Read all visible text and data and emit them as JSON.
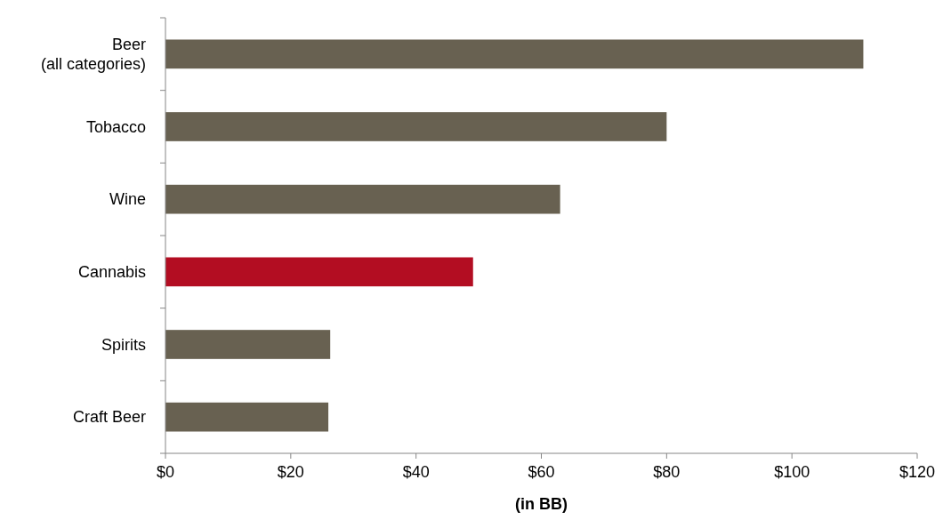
{
  "chart_data": {
    "type": "bar",
    "orientation": "horizontal",
    "xlabel": "(in BB)",
    "categories": [
      "Beer\n(all categories)",
      "Tobacco",
      "Wine",
      "Cannabis",
      "Spirits",
      "Craft Beer"
    ],
    "values": [
      111.4,
      80,
      63,
      49.1,
      26.3,
      26
    ],
    "colors": [
      "#686151",
      "#686151",
      "#686151",
      "#b30d22",
      "#686151",
      "#686151"
    ],
    "xlim": [
      0,
      120
    ],
    "xticks": [
      {
        "value": 0,
        "label": "$0"
      },
      {
        "value": 20,
        "label": "$20"
      },
      {
        "value": 40,
        "label": "$40"
      },
      {
        "value": 60,
        "label": "$60"
      },
      {
        "value": 80,
        "label": "$80"
      },
      {
        "value": 100,
        "label": "$100"
      },
      {
        "value": 120,
        "label": "$120"
      }
    ],
    "grid": false
  }
}
